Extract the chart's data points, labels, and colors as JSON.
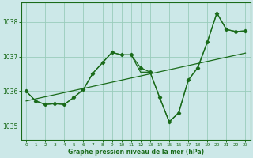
{
  "title": "Graphe pression niveau de la mer (hPa)",
  "bg_color": "#cce8e8",
  "grid_color": "#99ccbb",
  "line_color": "#1a6b1a",
  "x_ticks": [
    0,
    1,
    2,
    3,
    4,
    5,
    6,
    7,
    8,
    9,
    10,
    11,
    12,
    13,
    14,
    15,
    16,
    17,
    18,
    19,
    20,
    21,
    22,
    23
  ],
  "y_ticks": [
    1035,
    1036,
    1037,
    1038
  ],
  "ylim": [
    1034.6,
    1038.55
  ],
  "xlim": [
    -0.5,
    23.5
  ],
  "hours": [
    0,
    1,
    2,
    3,
    4,
    5,
    6,
    7,
    8,
    9,
    10,
    11,
    12,
    13,
    14,
    15,
    16,
    17,
    18,
    19,
    20,
    21,
    22,
    23
  ],
  "series_main": [
    1036.0,
    1035.72,
    1035.62,
    1035.64,
    1035.62,
    1035.82,
    1036.05,
    1036.52,
    1036.82,
    1037.12,
    1037.05,
    1037.05,
    1036.68,
    1036.55,
    1035.82,
    1035.12,
    1035.38,
    1036.32,
    1036.68,
    1037.42,
    1038.25,
    1037.78,
    1037.72,
    1037.74
  ],
  "series_line2": [
    1036.0,
    1035.72,
    1035.62,
    1035.64,
    1035.62,
    1035.82,
    1036.05,
    1036.52,
    1036.82,
    1037.12,
    1037.05,
    1037.05,
    1036.55,
    1036.55,
    1035.82,
    1035.12,
    1035.38,
    1036.32,
    1036.68,
    1037.42,
    1038.25,
    1037.78,
    1037.72,
    1037.74
  ],
  "series_linear": [
    1035.72,
    1035.78,
    1035.84,
    1035.9,
    1035.96,
    1036.02,
    1036.08,
    1036.14,
    1036.2,
    1036.26,
    1036.32,
    1036.38,
    1036.44,
    1036.5,
    1036.56,
    1036.62,
    1036.68,
    1036.74,
    1036.8,
    1036.86,
    1036.92,
    1036.98,
    1037.04,
    1037.1
  ]
}
